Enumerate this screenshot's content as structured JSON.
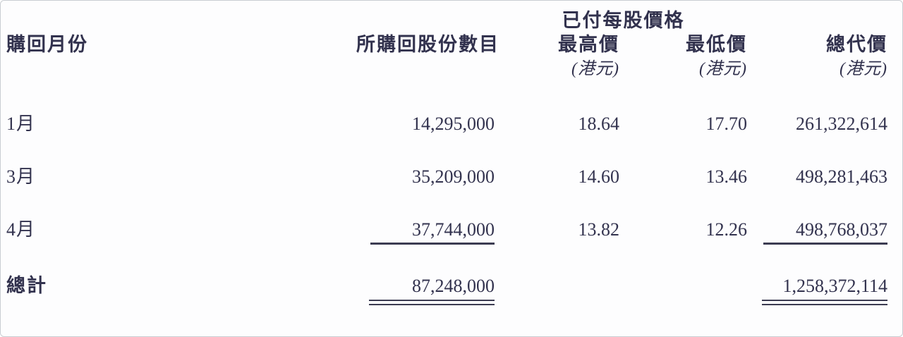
{
  "page": {
    "background": "#fdfdfe",
    "border_color": "#c9cdd2",
    "text_color": "#32324e"
  },
  "table": {
    "group_header": "已付每股價格",
    "columns": [
      {
        "label": "購回月份"
      },
      {
        "label": "所購回股份數目"
      },
      {
        "label": "最高價",
        "unit": "(港元)"
      },
      {
        "label": "最低價",
        "unit": "(港元)"
      },
      {
        "label": "總代價",
        "unit": "(港元)"
      }
    ],
    "rows": [
      {
        "month": "1月",
        "shares": "14,295,000",
        "high": "18.64",
        "low": "17.70",
        "total": "261,322,614"
      },
      {
        "month": "3月",
        "shares": "35,209,000",
        "high": "14.60",
        "low": "13.46",
        "total": "498,281,463"
      },
      {
        "month": "4月",
        "shares": "37,744,000",
        "high": "13.82",
        "low": "12.26",
        "total": "498,768,037"
      }
    ],
    "total_row": {
      "label": "總計",
      "shares": "87,248,000",
      "total": "1,258,372,114"
    }
  }
}
